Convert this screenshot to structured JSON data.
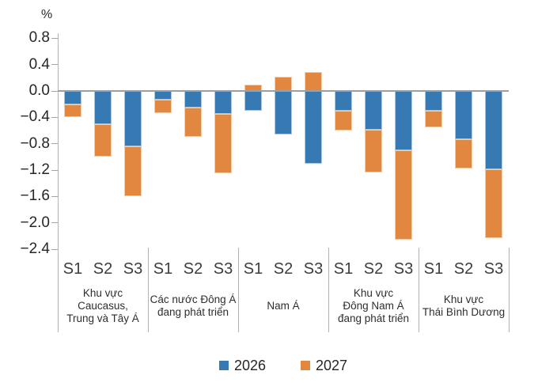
{
  "chart_data": {
    "type": "bar",
    "stacked": true,
    "orientation": "vertical",
    "unit_label": "%",
    "title": "",
    "xlabel": "",
    "ylabel": "%",
    "ylim": [
      -2.4,
      0.8
    ],
    "ytick_step": 0.4,
    "grid": false,
    "legend_position": "bottom-center",
    "yticks": [
      0.8,
      0.4,
      0.0,
      -0.4,
      -0.8,
      -1.2,
      -1.6,
      -2.0,
      -2.4
    ],
    "ytick_labels": [
      "0.8",
      "0.4",
      "0.0",
      "−0.4",
      "−0.8",
      "−1.2",
      "−1.6",
      "−2.0",
      "−2.4"
    ],
    "scenarios": [
      "S1",
      "S2",
      "S3"
    ],
    "groups": [
      {
        "label": "Khu vực Caucasus, Trung và Tây Á",
        "label_lines": [
          "Khu vực",
          "Caucasus,",
          "Trung và Tây Á"
        ]
      },
      {
        "label": "Các nước Đông Á đang phát triển",
        "label_lines": [
          "Các nước Đông Á",
          "đang phát triển"
        ]
      },
      {
        "label": "Nam Á",
        "label_lines": [
          "Nam Á"
        ]
      },
      {
        "label": "Khu vực Đông Nam Á đang phát triển",
        "label_lines": [
          "Khu vực",
          "Đông Nam Á",
          "đang phát triển"
        ]
      },
      {
        "label": "Khu vực Thái Bình Dương",
        "label_lines": [
          "Khu vực",
          "Thái Bình Dương"
        ]
      }
    ],
    "series": [
      {
        "name": "2026",
        "color": "#3679b3",
        "edge_color": "#a9c7e2",
        "values": [
          [
            -0.2,
            -0.5,
            -0.84
          ],
          [
            -0.13,
            -0.25,
            -0.35
          ],
          [
            -0.3,
            -0.66,
            -1.1
          ],
          [
            -0.3,
            -0.59,
            -0.9
          ],
          [
            -0.3,
            -0.73,
            -1.19
          ]
        ]
      },
      {
        "name": "2027",
        "color": "#e2873f",
        "edge_color": "#f4cda4",
        "values": [
          [
            -0.2,
            -0.5,
            -0.75
          ],
          [
            -0.2,
            -0.45,
            -0.9
          ],
          [
            0.1,
            0.22,
            0.29
          ],
          [
            -0.3,
            -0.64,
            -1.35
          ],
          [
            -0.25,
            -0.45,
            -1.04
          ]
        ]
      }
    ]
  }
}
